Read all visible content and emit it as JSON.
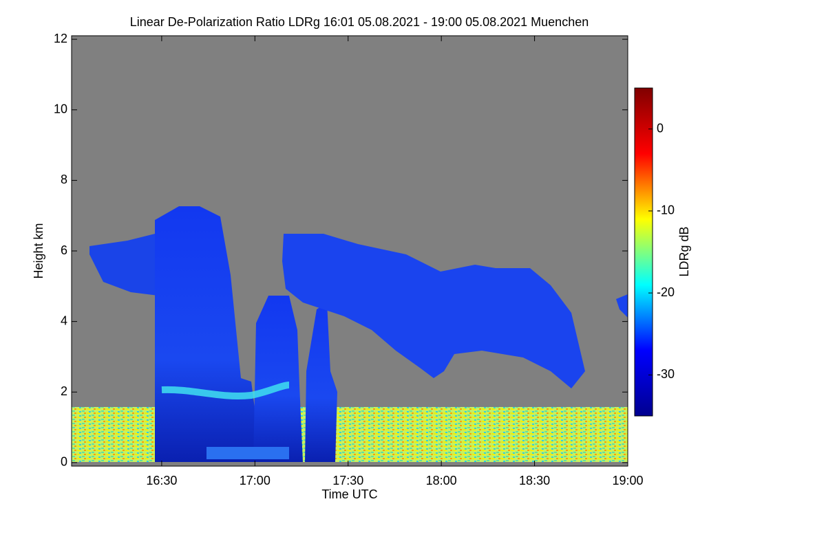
{
  "chart_data": {
    "type": "heatmap",
    "title": "Linear De-Polarization Ratio LDRg   16:01 05.08.2021 - 19:00 05.08.2021 Muenchen",
    "x_label": "Time UTC",
    "y_label": "Height km",
    "colorbar_label": "LDRg dB",
    "colormap": "jet",
    "background_color": "#808080",
    "xlim": [
      16.0167,
      19.0
    ],
    "xticks": [
      {
        "value": 16.5,
        "label": "16:30"
      },
      {
        "value": 17.0,
        "label": "17:00"
      },
      {
        "value": 17.5,
        "label": "17:30"
      },
      {
        "value": 18.0,
        "label": "18:00"
      },
      {
        "value": 18.5,
        "label": "18:30"
      },
      {
        "value": 19.0,
        "label": "19:00"
      }
    ],
    "ylim": [
      -0.1,
      12.1
    ],
    "yticks": [
      0,
      2,
      4,
      6,
      8,
      10,
      12
    ],
    "clim": [
      -35,
      5
    ],
    "cticks": [
      -30,
      -20,
      -10,
      0
    ]
  }
}
